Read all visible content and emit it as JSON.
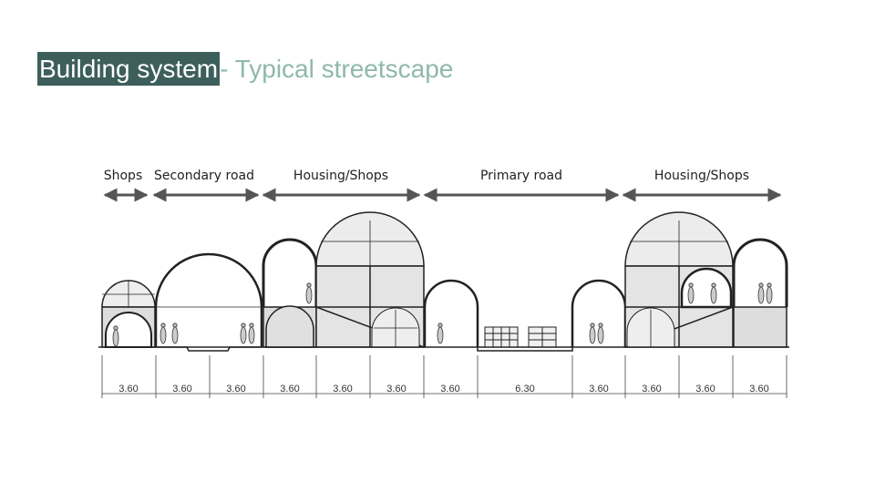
{
  "title": {
    "highlight": "Building system",
    "rest": " - Typical streetscape"
  },
  "colors": {
    "highlight_bg": "#3d5f5c",
    "highlight_text": "#ffffff",
    "subtitle_text": "#8fb9a8",
    "arrow": "#555555",
    "fill": "#e8e8e8",
    "line": "#222222"
  },
  "zones": [
    {
      "label": "Shops"
    },
    {
      "label": "Secondary road"
    },
    {
      "label": "Housing/Shops"
    },
    {
      "label": "Primary road"
    },
    {
      "label": "Housing/Shops"
    }
  ],
  "dimensions": [
    "3.60",
    "3.60",
    "3.60",
    "3.60",
    "3.60",
    "3.60",
    "3.60",
    "6.30",
    "3.60",
    "3.60",
    "3.60",
    "3.60"
  ]
}
